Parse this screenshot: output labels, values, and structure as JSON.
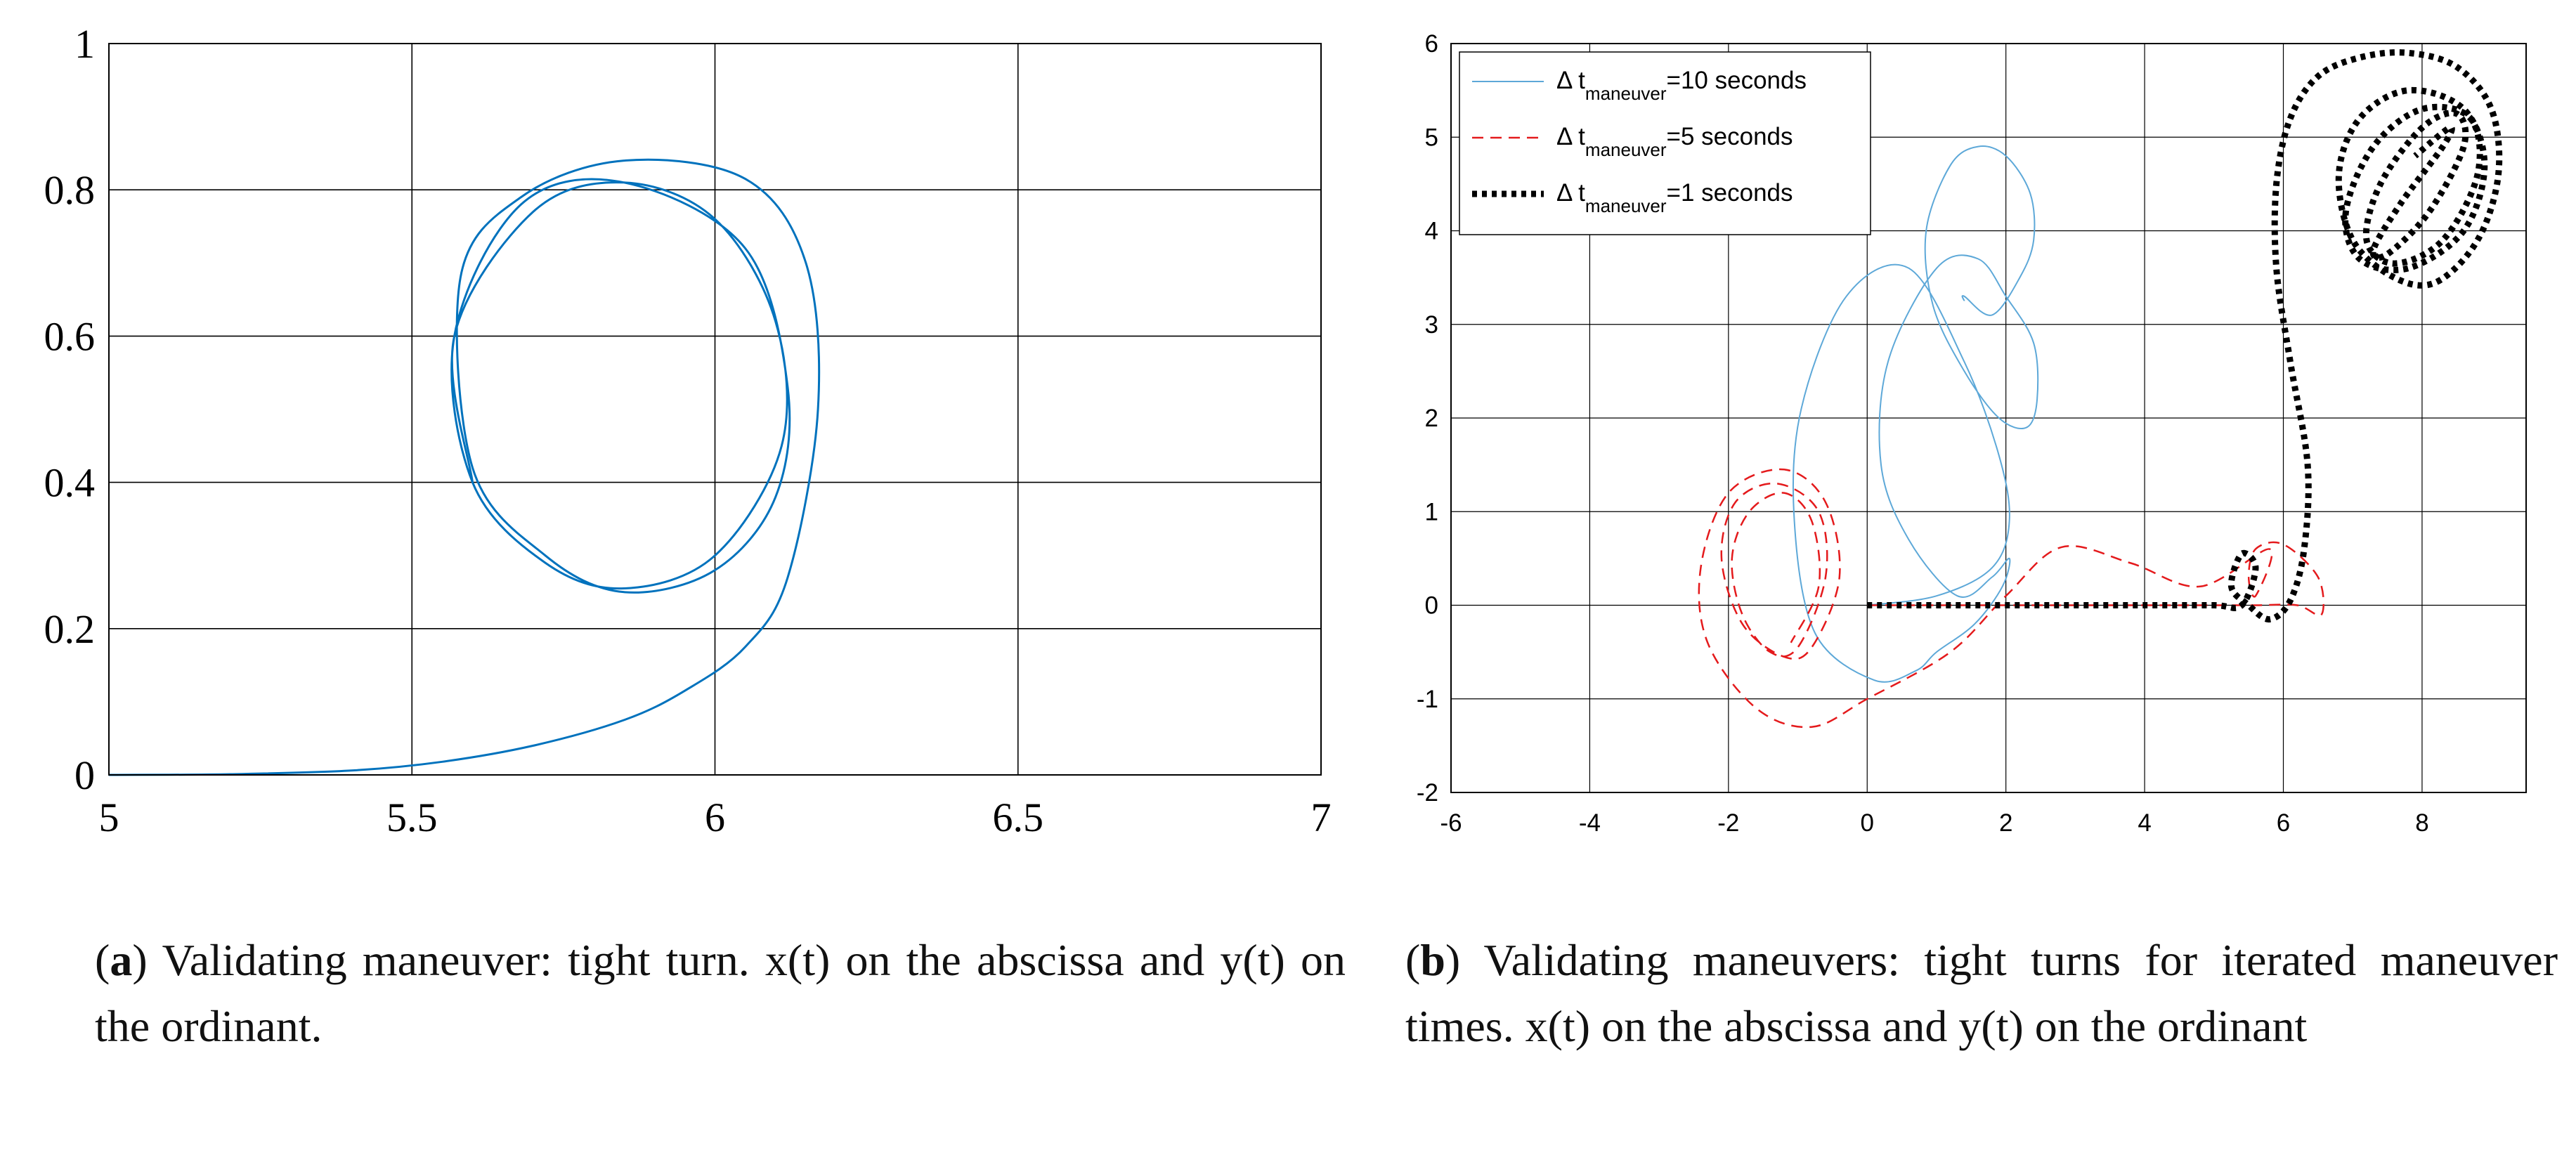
{
  "chart_data": [
    {
      "type": "line",
      "xlim": [
        5,
        7
      ],
      "ylim": [
        0,
        1
      ],
      "x_ticks": [
        5,
        5.5,
        6,
        6.5,
        7
      ],
      "y_ticks": [
        0,
        0.2,
        0.4,
        0.6,
        0.8,
        1
      ],
      "x_tick_labels": [
        "5",
        "5.5",
        "6",
        "6.5",
        "7"
      ],
      "y_tick_labels": [
        "0",
        "0.2",
        "0.4",
        "0.6",
        "0.8",
        "1"
      ],
      "grid": true,
      "series": [
        {
          "color": "#0072BD",
          "x": [
            5.0,
            5.2,
            5.4,
            5.55,
            5.7,
            5.85,
            5.95,
            6.05,
            6.12,
            6.17,
            6.15,
            6.05,
            5.85,
            5.68,
            5.58,
            5.6,
            5.72,
            5.85,
            6.0,
            6.1,
            6.12,
            6.05,
            5.85,
            5.68,
            5.57,
            5.6,
            5.72,
            5.85,
            6.0,
            6.11,
            6.1,
            6.0,
            5.85,
            5.7,
            5.57,
            5.6
          ],
          "y": [
            0.0,
            0.001,
            0.006,
            0.018,
            0.04,
            0.075,
            0.115,
            0.175,
            0.27,
            0.5,
            0.7,
            0.815,
            0.84,
            0.79,
            0.68,
            0.42,
            0.3,
            0.25,
            0.28,
            0.38,
            0.53,
            0.72,
            0.81,
            0.78,
            0.6,
            0.4,
            0.29,
            0.255,
            0.3,
            0.45,
            0.62,
            0.76,
            0.81,
            0.77,
            0.6,
            0.4
          ]
        }
      ]
    },
    {
      "type": "line",
      "xlim": [
        -6,
        9.5
      ],
      "ylim": [
        -2,
        6
      ],
      "x_ticks": [
        -6,
        -4,
        -2,
        0,
        2,
        4,
        6,
        8
      ],
      "y_ticks": [
        -2,
        -1,
        0,
        1,
        2,
        3,
        4,
        5,
        6
      ],
      "x_tick_labels": [
        "-6",
        "-4",
        "-2",
        "0",
        "2",
        "4",
        "6",
        "8"
      ],
      "y_tick_labels": [
        "-2",
        "-1",
        "0",
        "1",
        "2",
        "3",
        "4",
        "5",
        "6"
      ],
      "grid": true,
      "legend_position": "top-left",
      "series": [
        {
          "name_parts": [
            "Δ t",
            "maneuver",
            "=10 seconds"
          ],
          "color": "#5DA8D8",
          "dash": "solid",
          "x": [
            0.0,
            1.0,
            1.8,
            2.05,
            1.9,
            1.4,
            0.6,
            -0.3,
            -0.95,
            -1.05,
            -0.75,
            0.1,
            0.7,
            1.0,
            1.55,
            1.95,
            2.05,
            1.8,
            1.3,
            0.6,
            0.2,
            0.3,
            1.0,
            1.6,
            2.0,
            2.4,
            2.45,
            2.3,
            1.9,
            1.4,
            0.95,
            0.85,
            1.2,
            1.6,
            2.0,
            2.35,
            2.4,
            2.2,
            1.8,
            1.4,
            1.4
          ],
          "y": [
            0.0,
            0.1,
            0.4,
            0.9,
            1.6,
            2.6,
            3.6,
            3.3,
            2.1,
            0.9,
            -0.3,
            -0.8,
            -0.7,
            -0.5,
            -0.2,
            0.2,
            0.5,
            0.3,
            0.1,
            0.7,
            1.5,
            2.6,
            3.6,
            3.7,
            3.3,
            2.8,
            2.2,
            1.9,
            2.0,
            2.5,
            3.2,
            4.0,
            4.7,
            4.9,
            4.8,
            4.4,
            3.9,
            3.5,
            3.1,
            3.3,
            3.25
          ]
        },
        {
          "name_parts": [
            "Δ t",
            "maneuver",
            "=5 seconds"
          ],
          "color": "#E41A1C",
          "dash": "dashed",
          "x": [
            0.0,
            1.0,
            2.0,
            3.0,
            4.0,
            5.0,
            5.6,
            6.2,
            6.55,
            6.5,
            6.0,
            5.6,
            5.5,
            5.6,
            5.8,
            4.8,
            3.8,
            2.8,
            2.0,
            1.2,
            0.0,
            -0.8,
            -1.6,
            -2.3,
            -2.4,
            -2.0,
            -1.2,
            -0.6,
            -0.4,
            -0.8,
            -1.2,
            -1.8,
            -2.1,
            -1.9,
            -1.3,
            -0.7,
            -0.6,
            -1.0,
            -1.4,
            -1.8,
            -1.95,
            -1.7,
            -1.2,
            -0.8,
            -0.7,
            -1.1
          ],
          "y": [
            0.0,
            0.0,
            0.0,
            0.0,
            0.0,
            0.0,
            0.0,
            0.0,
            -0.1,
            0.3,
            0.65,
            0.6,
            0.3,
            0.1,
            0.6,
            0.2,
            0.45,
            0.62,
            0.1,
            -0.5,
            -1.0,
            -1.3,
            -1.1,
            -0.4,
            0.4,
            1.2,
            1.45,
            1.1,
            0.3,
            -0.45,
            -0.55,
            -0.2,
            0.5,
            1.1,
            1.3,
            1.0,
            0.3,
            -0.45,
            -0.5,
            -0.1,
            0.5,
            1.0,
            1.2,
            0.9,
            0.2,
            -0.4
          ]
        },
        {
          "name_parts": [
            "Δ t",
            "maneuver",
            "=1 seconds"
          ],
          "color": "#000000",
          "dash": "dotted",
          "x": [
            0.0,
            1.0,
            2.0,
            3.0,
            4.0,
            5.0,
            5.4,
            5.6,
            5.4,
            5.25,
            5.5,
            5.8,
            6.1,
            6.3,
            6.35,
            6.1,
            5.9,
            5.9,
            6.1,
            6.5,
            7.1,
            7.8,
            8.5,
            9.0,
            9.1,
            8.8,
            8.2,
            7.6,
            7.0,
            6.8,
            7.1,
            7.8,
            8.6,
            8.9,
            8.6,
            7.8,
            7.1,
            6.9,
            7.3,
            8.0,
            8.7,
            8.8,
            8.3,
            7.6,
            7.2,
            7.4,
            8.0,
            8.5,
            8.6,
            8.1,
            7.5,
            7.3,
            7.7,
            8.3,
            8.4,
            7.9
          ],
          "y": [
            0.0,
            0.0,
            0.0,
            0.0,
            0.0,
            0.0,
            0.0,
            0.4,
            0.55,
            0.2,
            0.0,
            -0.15,
            0.05,
            0.6,
            1.5,
            2.6,
            3.6,
            4.5,
            5.2,
            5.65,
            5.85,
            5.9,
            5.75,
            5.3,
            4.6,
            3.9,
            3.45,
            3.5,
            3.9,
            4.6,
            5.2,
            5.5,
            5.3,
            4.7,
            4.0,
            3.6,
            3.7,
            4.2,
            4.9,
            5.3,
            5.2,
            4.6,
            3.9,
            3.65,
            3.9,
            4.5,
            5.1,
            5.25,
            4.9,
            4.2,
            3.75,
            3.8,
            4.3,
            4.9,
            5.1,
            4.8
          ]
        }
      ]
    }
  ],
  "captions": {
    "a": {
      "letter": "a",
      "open": "(",
      "close": ")",
      "text": " Validating maneuver: tight turn. x(t) on the abscissa and y(t) on the ordinant."
    },
    "b": {
      "letter": "b",
      "open": "(",
      "close": ")",
      "text": " Validating maneuvers: tight turns for iterated maneuver times. x(t) on the abscissa and y(t) on the ordinant"
    }
  }
}
